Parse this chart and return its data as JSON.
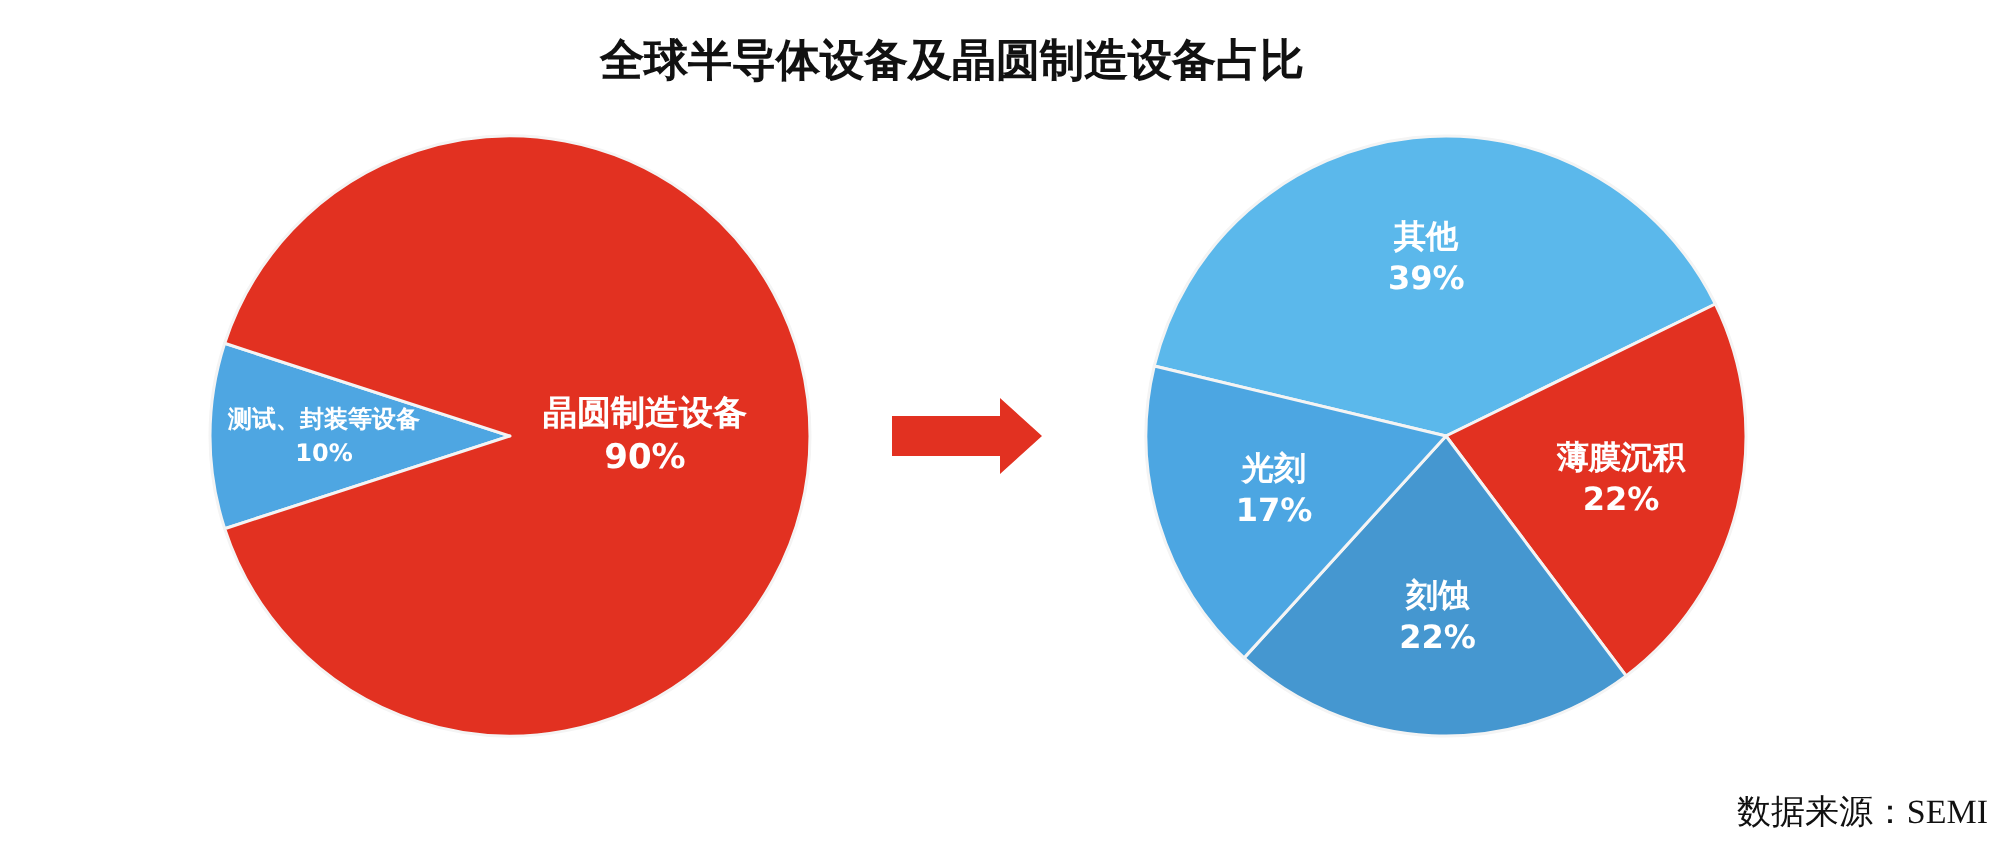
{
  "chart_data": [
    {
      "type": "pie",
      "title": "全球半导体设备及晶圆制造设备占比",
      "categories": [
        "测试、封装等设备",
        "晶圆制造设备"
      ],
      "values": [
        10,
        90
      ],
      "value_labels": [
        "10%",
        "90%"
      ],
      "colors": [
        "#4ea6e2",
        "#e23121"
      ]
    },
    {
      "type": "pie",
      "categories": [
        "其他",
        "薄膜沉积",
        "刻蚀",
        "光刻"
      ],
      "values": [
        39,
        22,
        22,
        17
      ],
      "value_labels": [
        "39%",
        "22%",
        "22%",
        "17%"
      ],
      "colors": [
        "#5bb8eb",
        "#e23121",
        "#4597d0",
        "#4ca6e2"
      ],
      "annotations": [
        "数据来源：SEMI"
      ]
    }
  ]
}
